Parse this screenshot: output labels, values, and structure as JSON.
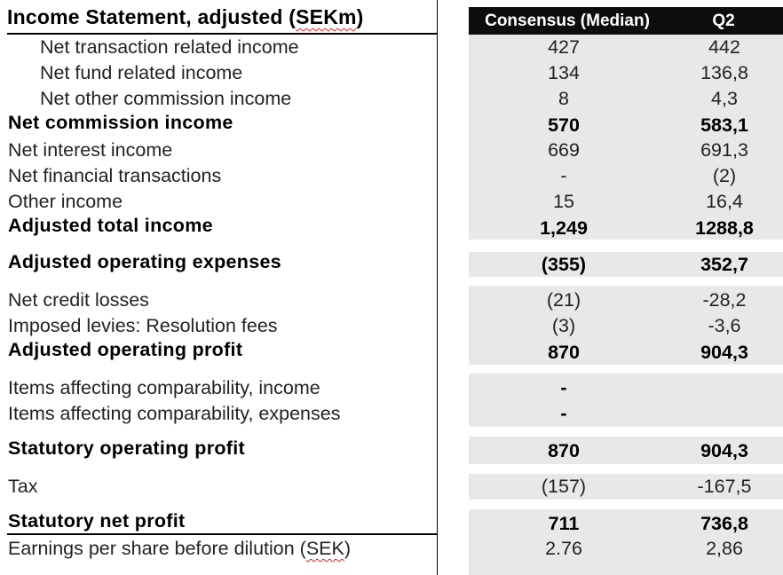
{
  "title": {
    "prefix": "Income Statement, adjusted (",
    "unit": "SEKm",
    "suffix": ")"
  },
  "columns": {
    "consensus": "Consensus (Median)",
    "quarter": "Q2"
  },
  "rows": {
    "net_transaction": {
      "label": "Net transaction related income",
      "consensus": "427",
      "q2": "442"
    },
    "net_fund": {
      "label": "Net fund related income",
      "consensus": "134",
      "q2": "136,8"
    },
    "net_other_commission": {
      "label": "Net other commission income",
      "consensus": "8",
      "q2": "4,3"
    },
    "net_commission": {
      "label": "Net commission income",
      "consensus": "570",
      "q2": "583,1"
    },
    "net_interest": {
      "label": "Net interest income",
      "consensus": "669",
      "q2": "691,3"
    },
    "net_financial": {
      "label": "Net financial transactions",
      "consensus": "-",
      "q2": "(2)"
    },
    "other_income": {
      "label": "Other income",
      "consensus": "15",
      "q2": "16,4"
    },
    "adj_total_income": {
      "label": "Adjusted total income",
      "consensus": "1,249",
      "q2": "1288,8"
    },
    "adj_opex": {
      "label": "Adjusted operating expenses",
      "consensus": "(355)",
      "q2": "352,7"
    },
    "net_credit_losses": {
      "label": "Net credit losses",
      "consensus": "(21)",
      "q2": "-28,2"
    },
    "imposed_levies": {
      "label": "Imposed levies: Resolution fees",
      "consensus": "(3)",
      "q2": "-3,6"
    },
    "adj_op_profit": {
      "label": "Adjusted operating profit",
      "consensus": "870",
      "q2": "904,3"
    },
    "iac_income": {
      "label": "Items affecting comparability, income",
      "consensus": "-",
      "q2": ""
    },
    "iac_expenses": {
      "label": "Items affecting comparability, expenses",
      "consensus": "-",
      "q2": ""
    },
    "stat_op_profit": {
      "label": "Statutory operating profit",
      "consensus": "870",
      "q2": "904,3"
    },
    "tax": {
      "label": "Tax",
      "consensus": "(157)",
      "q2": "-167,5"
    },
    "stat_net_profit": {
      "label": "Statutory net profit",
      "consensus": "711",
      "q2": "736,8"
    },
    "eps": {
      "label_prefix": "Earnings per share before dilution (",
      "label_unit": "SEK",
      "label_suffix": ")",
      "consensus": "2.76",
      "q2": "2,86"
    }
  }
}
